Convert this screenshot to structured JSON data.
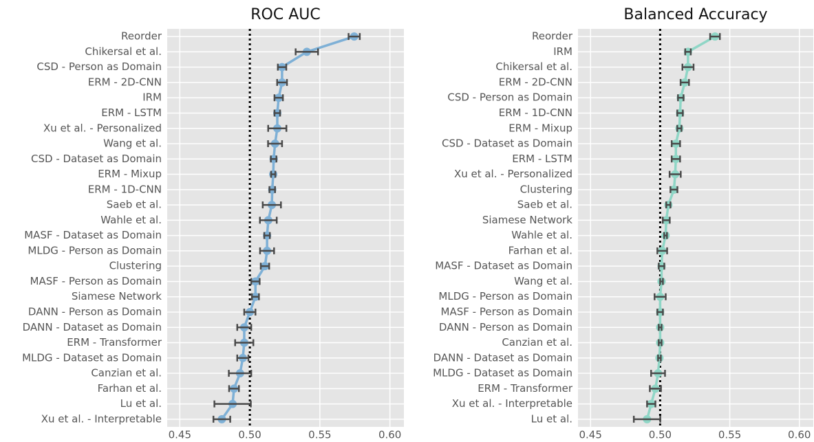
{
  "chart_data": [
    {
      "type": "pointplot",
      "title": "ROC AUC",
      "color": "#7eb0d6",
      "error_color": "#4a4a4a",
      "refline": 0.5,
      "grid": true,
      "categories": [
        "Reorder",
        "Chikersal et al.",
        "CSD - Person as Domain",
        "ERM - 2D-CNN",
        "IRM",
        "ERM - LSTM",
        "Xu et al. - Personalized",
        "Wang et al.",
        "CSD - Dataset as Domain",
        "ERM - Mixup",
        "ERM - 1D-CNN",
        "Saeb et al.",
        "Wahle et al.",
        "MASF - Dataset as Domain",
        "MLDG - Person as Domain",
        "Clustering",
        "MASF - Person as Domain",
        "Siamese Network",
        "DANN - Person as Domain",
        "DANN - Dataset as Domain",
        "ERM - Transformer",
        "MLDG - Dataset as Domain",
        "Canzian et al.",
        "Farhan et al.",
        "Lu et al.",
        "Xu et al. - Interpretable"
      ],
      "values": [
        0.5745,
        0.5407,
        0.523,
        0.523,
        0.5206,
        0.5196,
        0.5196,
        0.518,
        0.517,
        0.5167,
        0.516,
        0.5157,
        0.5132,
        0.5123,
        0.5123,
        0.5108,
        0.504,
        0.504,
        0.5,
        0.496,
        0.496,
        0.495,
        0.493,
        0.4887,
        0.4877,
        0.48
      ],
      "errors": [
        0.004,
        0.008,
        0.003,
        0.0035,
        0.003,
        0.002,
        0.0065,
        0.005,
        0.002,
        0.0015,
        0.002,
        0.0065,
        0.006,
        0.002,
        0.005,
        0.003,
        0.003,
        0.0025,
        0.004,
        0.005,
        0.0065,
        0.004,
        0.008,
        0.0035,
        0.013,
        0.006
      ],
      "xlim": [
        0.441,
        0.61
      ],
      "xticks": [
        0.45,
        {
          "value": 0.5,
          "label": "0.50"
        },
        0.55,
        {
          "value": 0.6,
          "label": "0.60"
        }
      ]
    },
    {
      "type": "pointplot",
      "title": "Balanced Accuracy",
      "color": "#8fd6c6",
      "error_color": "#4a4a4a",
      "refline": 0.5,
      "grid": true,
      "categories": [
        "Reorder",
        "IRM",
        "Chikersal et al.",
        "ERM - 2D-CNN",
        "CSD - Person as Domain",
        "ERM - 1D-CNN",
        "ERM - Mixup",
        "CSD - Dataset as Domain",
        "ERM - LSTM",
        "Xu et al. - Personalized",
        "Clustering",
        "Saeb et al.",
        "Siamese Network",
        "Wahle et al.",
        "Farhan et al.",
        "MASF - Dataset as Domain",
        "Wang et al.",
        "MLDG - Person as Domain",
        "MASF - Person as Domain",
        "DANN - Person as Domain",
        "Canzian et al.",
        "DANN - Dataset as Domain",
        "MLDG - Dataset as Domain",
        "ERM - Transformer",
        "Xu et al. - Interpretable",
        "Lu et al."
      ],
      "values": [
        0.5394,
        0.52,
        0.52,
        0.5177,
        0.5148,
        0.5143,
        0.5138,
        0.5113,
        0.5113,
        0.5108,
        0.5099,
        0.5059,
        0.5044,
        0.5039,
        0.5015,
        0.501,
        0.501,
        0.5,
        0.5,
        0.5,
        0.5,
        0.4995,
        0.4985,
        0.4966,
        0.4936,
        0.4906
      ],
      "errors": [
        0.0035,
        0.002,
        0.004,
        0.003,
        0.002,
        0.002,
        0.0015,
        0.003,
        0.003,
        0.004,
        0.0025,
        0.0015,
        0.0025,
        0.001,
        0.0035,
        0.002,
        0.001,
        0.004,
        0.002,
        0.001,
        0.001,
        0.001,
        0.005,
        0.004,
        0.003,
        0.0095
      ],
      "xlim": [
        0.441,
        0.61
      ],
      "xticks": [
        0.45,
        {
          "value": 0.5,
          "label": "0.50"
        },
        0.55,
        {
          "value": 0.6,
          "label": "0.60"
        }
      ]
    }
  ]
}
